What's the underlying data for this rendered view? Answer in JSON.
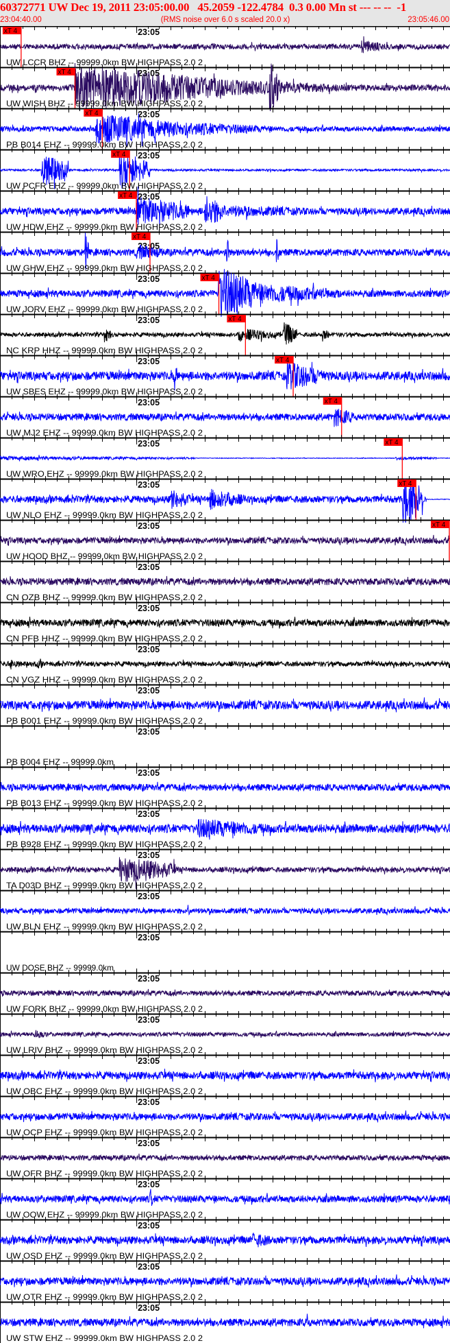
{
  "header": {
    "title": "60372771 UW Dec 19, 2011 23:05:00.00   45.2059 -122.4784  0.3 0.00 Mn st --- -- --  -1",
    "start_time": "23:04:40.00",
    "scale_note": "(RMS noise over 6.0 s scaled 20.0 x)",
    "end_time": "23:05:46.00"
  },
  "axis": {
    "start": "23:04:40",
    "end": "23:05:46",
    "major_label": "23:05",
    "major_time": "23:05:00"
  },
  "colors": {
    "header_bg": "#e6e6e6",
    "header_text": "#ff0000",
    "pick": "#ff0000",
    "BHZ": "#2a0a60",
    "EHZ": "#0000ff",
    "HHZ": "#000000"
  },
  "pick_label": "xT 4",
  "traces": [
    {
      "label": "UW LCCR BHZ -- 99999.0km BW  HIGHPASS  2.0  2",
      "comp": "BHZ",
      "noise": 0.15,
      "pick": "23:04:43.1",
      "events": [
        [
          "23:05:33",
          "23:05:37",
          0.4
        ]
      ]
    },
    {
      "label": "UW WISH BHZ -- 99999.0km BW  HIGHPASS  2.0  2",
      "comp": "BHZ",
      "noise": 0.18,
      "pick": "23:04:51.0",
      "events": [
        [
          "23:04:51",
          "23:05:12",
          1.4
        ],
        [
          "23:05:12",
          "23:05:30",
          0.5
        ],
        [
          "23:05:19.5",
          "23:05:21",
          1.6
        ]
      ]
    },
    {
      "label": "PB B014 EHZ -- 99999.0km BW  HIGHPASS  2.0  2",
      "comp": "EHZ",
      "noise": 0.15,
      "pick": "23:04:55.0",
      "events": [
        [
          "23:04:54",
          "23:05:08",
          0.9
        ],
        [
          "23:05:08",
          "23:05:20",
          0.4
        ]
      ]
    },
    {
      "label": "UW PCFR EHZ -- 99999.0km BW  HIGHPASS  2.0  2",
      "comp": "EHZ",
      "noise": 0.06,
      "pick": "23:04:59.0",
      "events": [
        [
          "23:04:46",
          "23:04:50",
          1.0
        ],
        [
          "23:04:57.5",
          "23:05:02",
          1.1
        ]
      ]
    },
    {
      "label": "UW HDW EHZ -- 99999.0km BW  HIGHPASS  2.0  2",
      "comp": "EHZ",
      "noise": 0.2,
      "pick": "23:05:00.0",
      "events": [
        [
          "23:05:00",
          "23:05:08",
          0.9
        ],
        [
          "23:05:10",
          "23:05:13",
          1.0
        ],
        [
          "23:05:13",
          "23:05:30",
          0.35
        ]
      ]
    },
    {
      "label": "UW GHW EHZ -- 99999.0km BW  HIGHPASS  2.0  2",
      "comp": "EHZ",
      "noise": 0.2,
      "pick": "23:05:02.0",
      "events": [
        [
          "23:04:52.5",
          "23:04:53",
          1.2
        ],
        [
          "23:05:00",
          "23:05:05",
          0.45
        ],
        [
          "23:05:13",
          "23:05:13.6",
          1.5
        ],
        [
          "23:05:20.5",
          "23:05:21",
          0.9
        ]
      ]
    },
    {
      "label": "UW JORV EHZ -- 99999.0km BW  HIGHPASS  2.0  2",
      "comp": "EHZ",
      "noise": 0.2,
      "pick": "23:05:12.1",
      "events": [
        [
          "23:05:12",
          "23:05:18",
          1.6
        ],
        [
          "23:05:18",
          "23:05:30",
          0.6
        ]
      ]
    },
    {
      "label": "NC KRP HHZ -- 99999.0km BW  HIGHPASS  2.0  2",
      "comp": "HHZ",
      "noise": 0.12,
      "pick": "23:05:16.0",
      "events": [
        [
          "23:04:55.3",
          "23:04:56.3",
          0.5
        ],
        [
          "23:05:15",
          "23:05:16",
          0.5
        ],
        [
          "23:05:16",
          "23:05:21",
          0.35
        ],
        [
          "23:05:21.5",
          "23:05:23.5",
          0.8
        ],
        [
          "23:05:27.3",
          "23:05:28.3",
          0.4
        ]
      ]
    },
    {
      "label": "UW SBES EHZ -- 99999.0km BW  HIGHPASS  2.0  2",
      "comp": "EHZ",
      "noise": 0.25,
      "pick": "23:05:23.0",
      "events": [
        [
          "23:05:05.5",
          "23:05:06",
          1.0
        ],
        [
          "23:05:22",
          "23:05:28",
          0.85
        ]
      ]
    },
    {
      "label": "UW MJ2 EHZ -- 99999.0km BW  HIGHPASS  2.0  2",
      "comp": "EHZ",
      "noise": 0.2,
      "pick": "23:05:30.1",
      "events": [
        [
          "23:05:29",
          "23:05:32",
          0.6
        ]
      ]
    },
    {
      "label": "UW WRO EHZ -- 99999.0km BW  HIGHPASS  2.0  2",
      "comp": "EHZ",
      "noise": 0.02,
      "pick": "23:05:39.0",
      "events": [
        [
          "23:04:40",
          "23:05:08.6",
          0.12
        ],
        [
          "23:05:38",
          "23:05:44",
          0.1
        ]
      ]
    },
    {
      "label": "UW NLO EHZ -- 99999.0km BW  HIGHPASS  2.0  2",
      "comp": "EHZ",
      "noise": 0.2,
      "pick": "23:05:41.0",
      "events": [
        [
          "23:05:05",
          "23:05:08",
          0.6
        ],
        [
          "23:05:10.7",
          "23:05:15.8",
          0.65
        ],
        [
          "23:05:39",
          "23:05:42",
          1.7
        ]
      ],
      "quiet_after": "23:05:42.5"
    },
    {
      "label": "UW HOOD BHZ -- 99999.0km BW  HIGHPASS  2.0  2",
      "comp": "BHZ",
      "noise": 0.18,
      "pick": "23:05:45.9",
      "events": []
    },
    {
      "label": "CN OZB BHZ -- 99999.0km BW  HIGHPASS  2.0  2",
      "comp": "BHZ",
      "noise": 0.2,
      "events": []
    },
    {
      "label": "CN PFB HHZ -- 99999.0km BW  HIGHPASS  2.0  2",
      "comp": "HHZ",
      "noise": 0.2,
      "events": []
    },
    {
      "label": "CN VGZ HHZ -- 99999.0km BW  HIGHPASS  2.0  2",
      "comp": "HHZ",
      "noise": 0.14,
      "events": [
        [
          "23:04:41.5",
          "23:04:43",
          0.35
        ],
        [
          "23:04:45.5",
          "23:04:46.5",
          0.3
        ]
      ]
    },
    {
      "label": "PB B001 EHZ -- 99999.0km BW  HIGHPASS  2.0  2",
      "comp": "EHZ",
      "noise": 0.25,
      "events": []
    },
    {
      "label": "PB B004 EHZ -- 99999.0km",
      "comp": "EHZ",
      "noise": 0,
      "events": [],
      "empty": true
    },
    {
      "label": "PB B013 EHZ -- 99999.0km BW  HIGHPASS  2.0  2",
      "comp": "EHZ",
      "noise": 0.2,
      "events": []
    },
    {
      "label": "PB B928 EHZ -- 99999.0km BW  HIGHPASS  2.0  2",
      "comp": "EHZ",
      "noise": 0.25,
      "events": [
        [
          "23:05:09",
          "23:05:20",
          0.6
        ]
      ]
    },
    {
      "label": "TA D03D BHZ -- 99999.0km BW  HIGHPASS  2.0  2",
      "comp": "BHZ",
      "noise": 0.15,
      "events": [
        [
          "23:04:57.5",
          "23:05:06",
          0.8
        ]
      ]
    },
    {
      "label": "UW BLN EHZ -- 99999.0km BW  HIGHPASS  2.0  2",
      "comp": "EHZ",
      "noise": 0.15,
      "events": [
        [
          "23:05:07.5",
          "23:05:08",
          0.5
        ]
      ]
    },
    {
      "label": "UW DOSE BHZ -- 99999.0km",
      "comp": "BHZ",
      "noise": 0,
      "events": [],
      "empty": true
    },
    {
      "label": "UW FORK BHZ -- 99999.0km BW  HIGHPASS  2.0  2",
      "comp": "BHZ",
      "noise": 0.15,
      "events": []
    },
    {
      "label": "UW LRIV BHZ -- 99999.0km BW  HIGHPASS  2.0  2",
      "comp": "BHZ",
      "noise": 0.12,
      "events": [
        [
          "23:04:45",
          "23:04:47",
          0.3
        ]
      ]
    },
    {
      "label": "UW OBC EHZ -- 99999.0km BW  HIGHPASS  2.0  2",
      "comp": "EHZ",
      "noise": 0.22,
      "events": []
    },
    {
      "label": "UW OCP EHZ -- 99999.0km BW  HIGHPASS  2.0  2",
      "comp": "EHZ",
      "noise": 0.2,
      "events": []
    },
    {
      "label": "UW OFR BHZ -- 99999.0km BW  HIGHPASS  2.0  2",
      "comp": "BHZ",
      "noise": 0.15,
      "events": []
    },
    {
      "label": "UW OOW EHZ -- 99999.0km BW  HIGHPASS  2.0  2",
      "comp": "EHZ",
      "noise": 0.2,
      "events": [
        [
          "23:05:02",
          "23:05:02.5",
          0.7
        ]
      ]
    },
    {
      "label": "UW OSD EHZ -- 99999.0km BW  HIGHPASS  2.0  2",
      "comp": "EHZ",
      "noise": 0.22,
      "events": [
        [
          "23:05:17",
          "23:05:20",
          0.5
        ]
      ]
    },
    {
      "label": "UW OTR EHZ -- 99999.0km BW  HIGHPASS  2.0  2",
      "comp": "EHZ",
      "noise": 0.22,
      "events": []
    },
    {
      "label": "UW STW EHZ -- 99999.0km BW  HIGHPASS  2.0  2",
      "comp": "EHZ",
      "noise": 0.22,
      "events": [
        [
          "23:05:25",
          "23:05:25.5",
          0.6
        ]
      ]
    }
  ]
}
